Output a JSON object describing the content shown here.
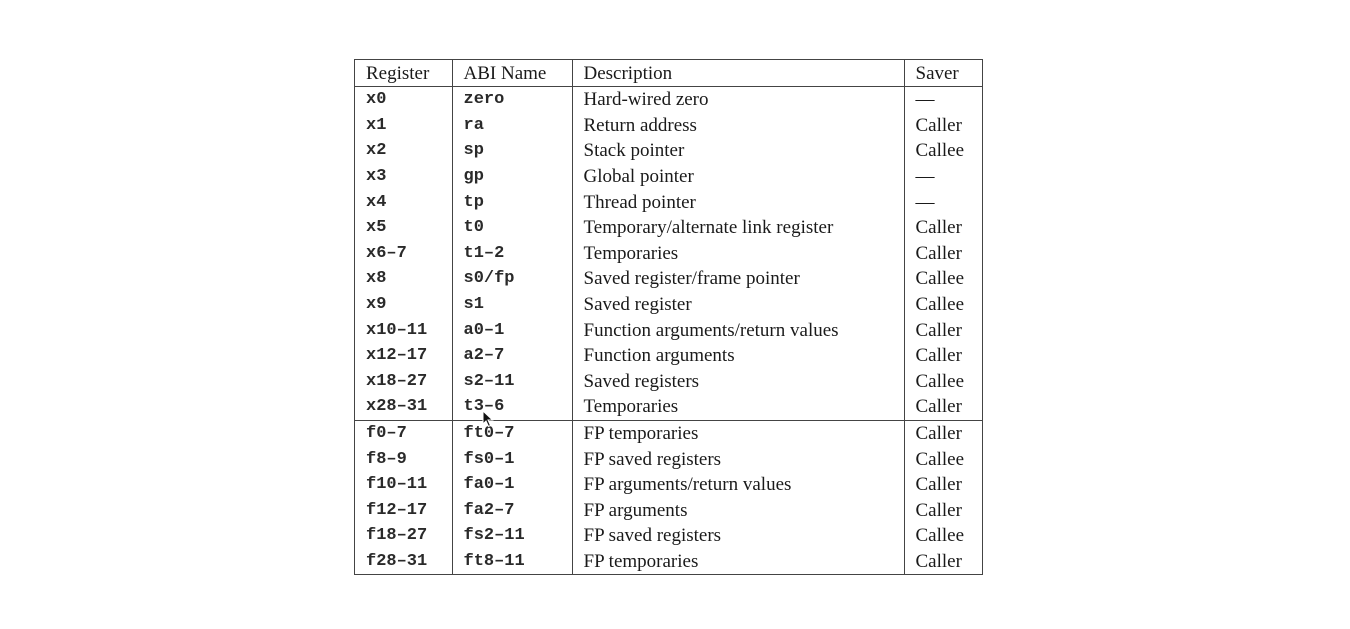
{
  "table": {
    "headers": [
      "Register",
      "ABI Name",
      "Description",
      "Saver"
    ],
    "rows": [
      {
        "register": "x0",
        "abi": "zero",
        "description": "Hard-wired zero",
        "saver": "—"
      },
      {
        "register": "x1",
        "abi": "ra",
        "description": "Return address",
        "saver": "Caller"
      },
      {
        "register": "x2",
        "abi": "sp",
        "description": "Stack pointer",
        "saver": "Callee"
      },
      {
        "register": "x3",
        "abi": "gp",
        "description": "Global pointer",
        "saver": "—"
      },
      {
        "register": "x4",
        "abi": "tp",
        "description": "Thread pointer",
        "saver": "—"
      },
      {
        "register": "x5",
        "abi": "t0",
        "description": "Temporary/alternate link register",
        "saver": "Caller"
      },
      {
        "register": "x6–7",
        "abi": "t1–2",
        "description": "Temporaries",
        "saver": "Caller"
      },
      {
        "register": "x8",
        "abi": "s0/fp",
        "description": "Saved register/frame pointer",
        "saver": "Callee"
      },
      {
        "register": "x9",
        "abi": "s1",
        "description": "Saved register",
        "saver": "Callee"
      },
      {
        "register": "x10–11",
        "abi": "a0–1",
        "description": "Function arguments/return values",
        "saver": "Caller"
      },
      {
        "register": "x12–17",
        "abi": "a2–7",
        "description": "Function arguments",
        "saver": "Caller"
      },
      {
        "register": "x18–27",
        "abi": "s2–11",
        "description": "Saved registers",
        "saver": "Callee"
      },
      {
        "register": "x28–31",
        "abi": "t3–6",
        "description": "Temporaries",
        "saver": "Caller"
      },
      {
        "register": "f0–7",
        "abi": "ft0–7",
        "description": "FP temporaries",
        "saver": "Caller"
      },
      {
        "register": "f8–9",
        "abi": "fs0–1",
        "description": "FP saved registers",
        "saver": "Callee"
      },
      {
        "register": "f10–11",
        "abi": "fa0–1",
        "description": "FP arguments/return values",
        "saver": "Caller"
      },
      {
        "register": "f12–17",
        "abi": "fa2–7",
        "description": "FP arguments",
        "saver": "Caller"
      },
      {
        "register": "f18–27",
        "abi": "fs2–11",
        "description": "FP saved registers",
        "saver": "Callee"
      },
      {
        "register": "f28–31",
        "abi": "ft8–11",
        "description": "FP temporaries",
        "saver": "Caller"
      }
    ]
  }
}
